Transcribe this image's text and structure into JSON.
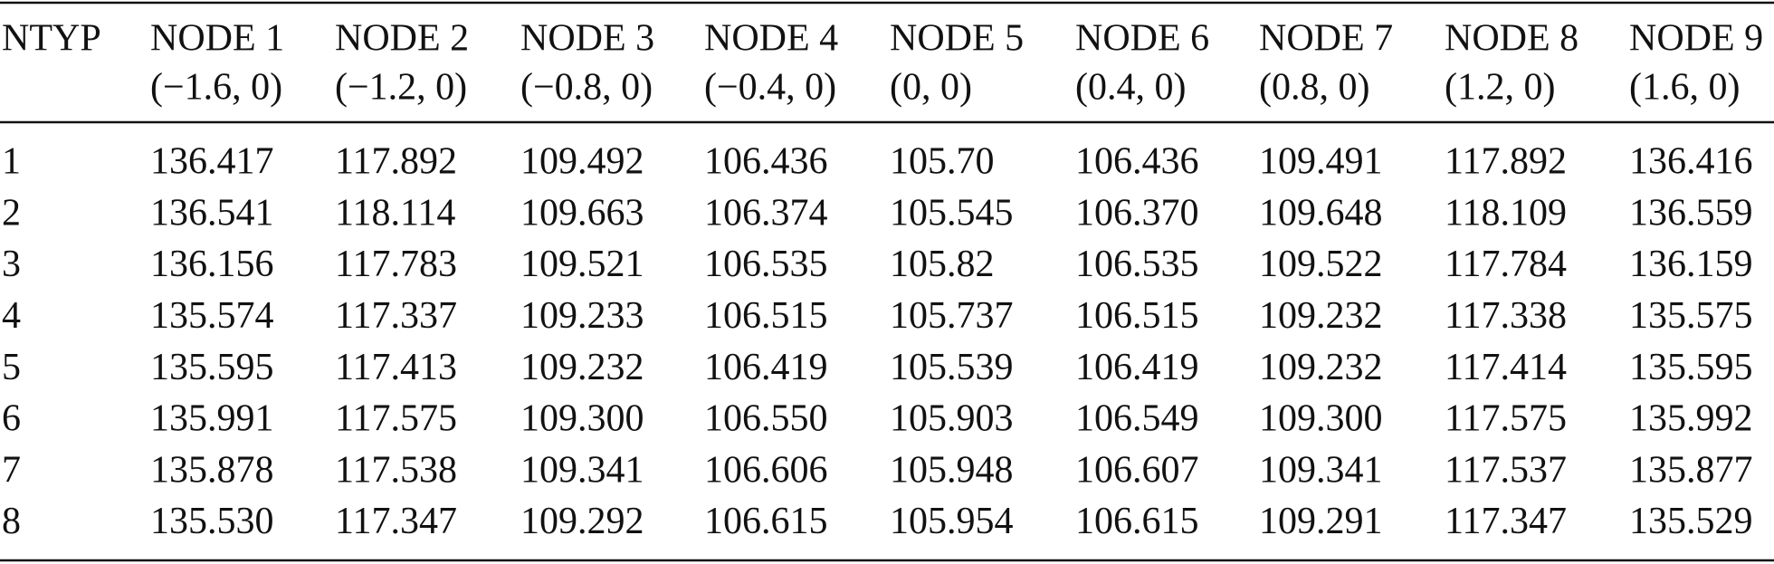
{
  "table": {
    "header": {
      "first": "NTYP",
      "nodes": [
        {
          "name": "NODE 1",
          "coord": "(−1.6, 0)"
        },
        {
          "name": "NODE 2",
          "coord": "(−1.2, 0)"
        },
        {
          "name": "NODE 3",
          "coord": "(−0.8, 0)"
        },
        {
          "name": "NODE 4",
          "coord": "(−0.4, 0)"
        },
        {
          "name": "NODE 5",
          "coord": "(0, 0)"
        },
        {
          "name": "NODE 6",
          "coord": "(0.4, 0)"
        },
        {
          "name": "NODE 7",
          "coord": "(0.8, 0)"
        },
        {
          "name": "NODE 8",
          "coord": "(1.2, 0)"
        },
        {
          "name": "NODE 9",
          "coord": "(1.6, 0)"
        }
      ]
    },
    "rows": [
      [
        "1",
        "136.417",
        "117.892",
        "109.492",
        "106.436",
        "105.70",
        "106.436",
        "109.491",
        "117.892",
        "136.416"
      ],
      [
        "2",
        "136.541",
        "118.114",
        "109.663",
        "106.374",
        "105.545",
        "106.370",
        "109.648",
        "118.109",
        "136.559"
      ],
      [
        "3",
        "136.156",
        "117.783",
        "109.521",
        "106.535",
        "105.82",
        "106.535",
        "109.522",
        "117.784",
        "136.159"
      ],
      [
        "4",
        "135.574",
        "117.337",
        "109.233",
        "106.515",
        "105.737",
        "106.515",
        "109.232",
        "117.338",
        "135.575"
      ],
      [
        "5",
        "135.595",
        "117.413",
        "109.232",
        "106.419",
        "105.539",
        "106.419",
        "109.232",
        "117.414",
        "135.595"
      ],
      [
        "6",
        "135.991",
        "117.575",
        "109.300",
        "106.550",
        "105.903",
        "106.549",
        "109.300",
        "117.575",
        "135.992"
      ],
      [
        "7",
        "135.878",
        "117.538",
        "109.341",
        "106.606",
        "105.948",
        "106.607",
        "109.341",
        "117.537",
        "135.877"
      ],
      [
        "8",
        "135.530",
        "117.347",
        "109.292",
        "106.615",
        "105.954",
        "106.615",
        "109.291",
        "117.347",
        "135.529"
      ]
    ]
  }
}
